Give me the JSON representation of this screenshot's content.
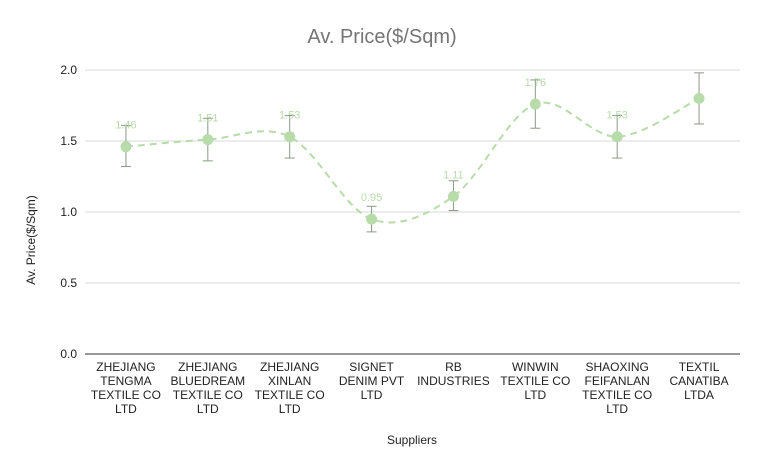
{
  "chart_data": {
    "type": "line",
    "title": "Av. Price($/Sqm)",
    "xlabel": "Suppliers",
    "ylabel": "Av. Price($/Sqm)",
    "ylim": [
      0,
      2.0
    ],
    "yticks": [
      "0.0",
      "0.5",
      "1.0",
      "1.5",
      "2.0"
    ],
    "grid": true,
    "legend": "none",
    "line_style": "dashed smooth",
    "colors": {
      "series": "#b7dcaa",
      "marker": "#b7dcaa",
      "data_label": "#b7dcaa",
      "error_bar": "#8a9a86",
      "gridline": "#d9d9d9",
      "axis": "#333333"
    },
    "categories": [
      [
        "ZHEJIANG",
        "TENGMA",
        "TEXTILE CO",
        "LTD"
      ],
      [
        "ZHEJIANG",
        "BLUEDREAM",
        "TEXTILE CO",
        "LTD"
      ],
      [
        "ZHEJIANG",
        "XINLAN",
        "TEXTILE CO",
        "LTD"
      ],
      [
        "SIGNET",
        "DENIM PVT",
        "LTD"
      ],
      [
        "RB",
        "INDUSTRIES"
      ],
      [
        "WINWIN",
        "TEXTILE CO",
        "LTD"
      ],
      [
        "SHAOXING",
        "FEIFANLAN",
        "TEXTILE CO",
        "LTD"
      ],
      [
        "TEXTIL",
        "CANATIBA",
        "LTDA"
      ]
    ],
    "series": [
      {
        "values": [
          1.46,
          1.51,
          1.53,
          0.95,
          1.11,
          1.76,
          1.53,
          1.8
        ],
        "data_labels": [
          "1.46",
          "1.51",
          "1.53",
          "0.95",
          "1.11",
          "1.76",
          "1.53",
          ""
        ],
        "error_low": [
          1.32,
          1.36,
          1.38,
          0.86,
          1.01,
          1.59,
          1.38,
          1.62
        ],
        "error_high": [
          1.61,
          1.66,
          1.68,
          1.04,
          1.22,
          1.93,
          1.68,
          1.98
        ]
      }
    ]
  }
}
